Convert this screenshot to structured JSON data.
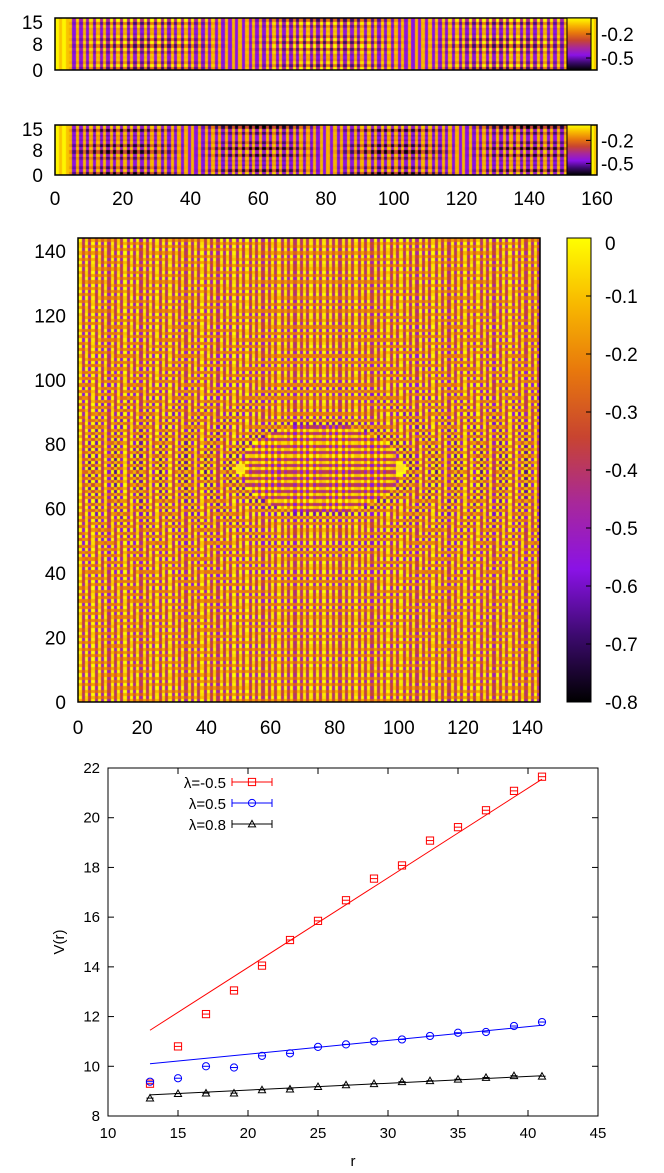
{
  "colorbar_scale": {
    "colors": [
      "#000000",
      "#3c0a6e",
      "#8a12e6",
      "#a8289a",
      "#c84430",
      "#e8780c",
      "#f8b800",
      "#ffff00"
    ]
  },
  "chart_data": [
    {
      "id": "strip1",
      "type": "heatmap",
      "title": "",
      "xlabel": "",
      "ylabel": "",
      "xlim": [
        0,
        160
      ],
      "ylim": [
        0,
        16
      ],
      "xticks": [],
      "yticks": [
        "15",
        "8",
        "0"
      ],
      "colorbar_ticks": [
        "-0.2",
        "-0.5"
      ],
      "colorbar_range": [
        -0.65,
        0
      ]
    },
    {
      "id": "strip2",
      "type": "heatmap",
      "title": "",
      "xlabel": "",
      "ylabel": "",
      "xlim": [
        0,
        160
      ],
      "ylim": [
        0,
        16
      ],
      "xticks": [
        "0",
        "20",
        "40",
        "60",
        "80",
        "100",
        "120",
        "140",
        "160"
      ],
      "yticks": [
        "15",
        "8",
        "0"
      ],
      "colorbar_ticks": [
        "-0.2",
        "-0.5"
      ],
      "colorbar_range": [
        -0.65,
        0
      ]
    },
    {
      "id": "square",
      "type": "heatmap",
      "title": "",
      "xlabel": "",
      "ylabel": "",
      "xlim": [
        0,
        144
      ],
      "ylim": [
        0,
        144
      ],
      "xticks": [
        "0",
        "20",
        "40",
        "60",
        "80",
        "100",
        "120",
        "140"
      ],
      "yticks": [
        "0",
        "20",
        "40",
        "60",
        "80",
        "100",
        "120",
        "140"
      ],
      "colorbar_ticks": [
        "0",
        "-0.1",
        "-0.2",
        "-0.3",
        "-0.4",
        "-0.5",
        "-0.6",
        "-0.7",
        "-0.8"
      ],
      "colorbar_range": [
        -0.8,
        0
      ],
      "sources": [
        [
          50,
          72
        ],
        [
          100,
          72
        ]
      ]
    },
    {
      "id": "potential",
      "type": "scatter",
      "title": "",
      "xlabel": "r",
      "ylabel": "V(r)",
      "xlim": [
        10,
        45
      ],
      "ylim": [
        8,
        22
      ],
      "xticks": [
        10,
        15,
        20,
        25,
        30,
        35,
        40,
        45
      ],
      "yticks": [
        8,
        10,
        12,
        14,
        16,
        18,
        20,
        22
      ],
      "legend_position": "top-left",
      "series": [
        {
          "name": "λ=-0.5",
          "color": "#ff0000",
          "marker": "square",
          "x": [
            13,
            15,
            17,
            19,
            21,
            23,
            25,
            27,
            29,
            31,
            33,
            35,
            37,
            39,
            41
          ],
          "y": [
            9.3,
            10.8,
            12.1,
            13.05,
            14.05,
            15.08,
            15.85,
            16.68,
            17.55,
            18.08,
            19.08,
            19.62,
            20.3,
            21.08,
            21.65
          ],
          "fit": [
            [
              13,
              11.45
            ],
            [
              41,
              21.55
            ]
          ]
        },
        {
          "name": "λ=0.5",
          "color": "#0000ff",
          "marker": "circle",
          "x": [
            13,
            15,
            17,
            19,
            21,
            23,
            25,
            27,
            29,
            31,
            33,
            35,
            37,
            39,
            41
          ],
          "y": [
            9.38,
            9.52,
            10.0,
            9.95,
            10.42,
            10.52,
            10.78,
            10.88,
            11.0,
            11.08,
            11.22,
            11.35,
            11.38,
            11.62,
            11.78
          ],
          "fit": [
            [
              13,
              10.1
            ],
            [
              41,
              11.65
            ]
          ]
        },
        {
          "name": "λ=0.8",
          "color": "#000000",
          "marker": "triangle",
          "x": [
            13,
            15,
            17,
            19,
            21,
            23,
            25,
            27,
            29,
            31,
            33,
            35,
            37,
            39,
            41
          ],
          "y": [
            8.72,
            8.9,
            8.92,
            8.92,
            9.05,
            9.08,
            9.18,
            9.25,
            9.3,
            9.38,
            9.42,
            9.48,
            9.55,
            9.62,
            9.6
          ],
          "fit": [
            [
              13,
              8.85
            ],
            [
              41,
              9.62
            ]
          ]
        }
      ]
    }
  ]
}
